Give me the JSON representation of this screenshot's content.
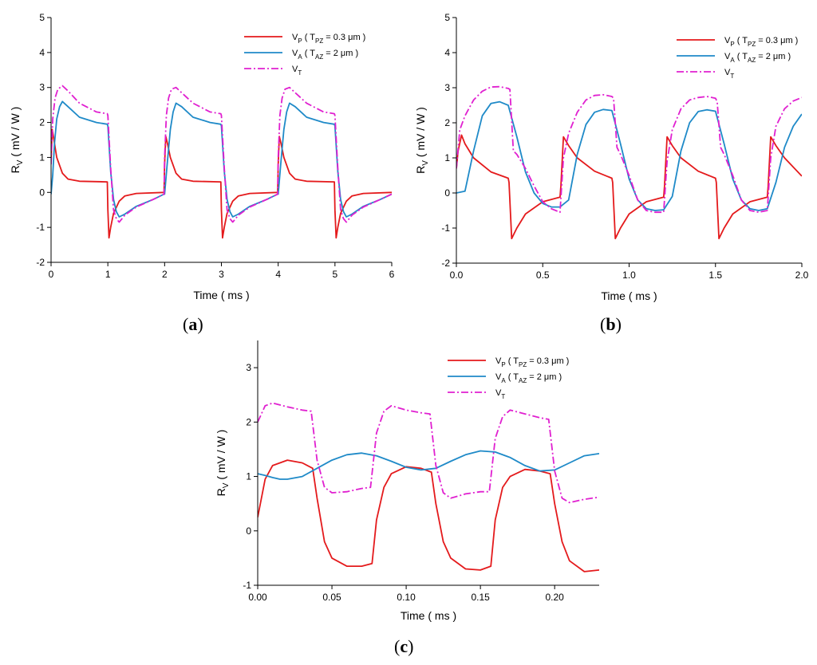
{
  "colors": {
    "vp": "#e41a1c",
    "va": "#1f8ac8",
    "vt": "#e020d0",
    "axis": "#000000"
  },
  "chart_data": [
    {
      "id": "a",
      "panel_label": "a",
      "type": "line",
      "xlabel": "Time ( ms )",
      "ylabel_main": "R",
      "ylabel_sub": "V",
      "ylabel_rest": " ( mV / W )",
      "xlim": [
        0,
        6
      ],
      "ylim": [
        -2,
        5
      ],
      "xticks": [
        0,
        1,
        2,
        3,
        4,
        5,
        6
      ],
      "xtick_labels": [
        "0",
        "1",
        "2",
        "3",
        "4",
        "5",
        "6"
      ],
      "yticks": [
        -2,
        -1,
        0,
        1,
        2,
        3,
        4,
        5
      ],
      "ytick_labels": [
        "-2",
        "-1",
        "0",
        "1",
        "2",
        "3",
        "4",
        "5"
      ],
      "legend": [
        {
          "main": "V",
          "sub": "P",
          "rest": " ( T",
          "sub2": "PZ",
          "rest2": " = 0.3 μm )"
        },
        {
          "main": "V",
          "sub": "A",
          "rest": " ( T",
          "sub2": "AZ",
          "rest2": " = 2 μm )"
        },
        {
          "main": "V",
          "sub": "T",
          "rest": "",
          "sub2": "",
          "rest2": ""
        }
      ],
      "series": [
        {
          "name": "VP",
          "x": [
            0,
            0.02,
            0.05,
            0.1,
            0.2,
            0.3,
            0.5,
            0.99,
            1.0,
            1.02,
            1.05,
            1.1,
            1.2,
            1.3,
            1.5,
            1.99,
            2.0,
            2.02,
            2.05,
            2.1,
            2.2,
            2.3,
            2.5,
            2.99,
            3.0,
            3.02,
            3.05,
            3.1,
            3.2,
            3.3,
            3.5,
            3.99,
            4.0,
            4.02,
            4.05,
            4.1,
            4.2,
            4.3,
            4.5,
            4.99,
            5.0,
            5.02,
            5.05,
            5.1,
            5.2,
            5.3,
            5.5,
            6.0
          ],
          "values": [
            0.9,
            1.8,
            1.5,
            1.0,
            0.55,
            0.38,
            0.32,
            0.3,
            -0.5,
            -1.3,
            -1.0,
            -0.6,
            -0.25,
            -0.1,
            -0.03,
            0.0,
            0.8,
            1.6,
            1.4,
            1.0,
            0.55,
            0.38,
            0.32,
            0.3,
            -0.5,
            -1.3,
            -1.0,
            -0.6,
            -0.25,
            -0.1,
            -0.03,
            0.0,
            0.8,
            1.6,
            1.4,
            1.0,
            0.55,
            0.38,
            0.32,
            0.3,
            -0.5,
            -1.3,
            -1.0,
            -0.6,
            -0.25,
            -0.1,
            -0.03,
            0.0
          ]
        },
        {
          "name": "VA",
          "x": [
            0,
            0.03,
            0.06,
            0.1,
            0.15,
            0.2,
            0.3,
            0.5,
            0.8,
            0.99,
            1.0,
            1.05,
            1.1,
            1.15,
            1.2,
            1.3,
            1.5,
            1.8,
            1.99,
            2.0,
            2.05,
            2.1,
            2.15,
            2.2,
            2.3,
            2.5,
            2.8,
            2.99,
            3.0,
            3.05,
            3.1,
            3.15,
            3.2,
            3.3,
            3.5,
            3.8,
            3.99,
            4.0,
            4.05,
            4.1,
            4.15,
            4.2,
            4.3,
            4.5,
            4.8,
            4.99,
            5.0,
            5.05,
            5.1,
            5.15,
            5.2,
            5.3,
            5.5,
            5.8,
            6.0
          ],
          "values": [
            -0.05,
            0.5,
            1.4,
            2.1,
            2.45,
            2.6,
            2.45,
            2.15,
            2.0,
            1.95,
            1.9,
            0.6,
            -0.2,
            -0.55,
            -0.7,
            -0.62,
            -0.4,
            -0.2,
            -0.05,
            -0.05,
            0.9,
            1.8,
            2.3,
            2.55,
            2.45,
            2.15,
            2.0,
            1.95,
            1.9,
            0.6,
            -0.2,
            -0.55,
            -0.7,
            -0.62,
            -0.4,
            -0.2,
            -0.05,
            -0.05,
            0.9,
            1.8,
            2.3,
            2.55,
            2.45,
            2.15,
            2.0,
            1.95,
            1.9,
            0.6,
            -0.2,
            -0.55,
            -0.7,
            -0.62,
            -0.4,
            -0.2,
            -0.05
          ]
        },
        {
          "name": "VT",
          "x": [
            0,
            0.03,
            0.07,
            0.12,
            0.2,
            0.3,
            0.5,
            0.8,
            0.99,
            1.0,
            1.05,
            1.1,
            1.15,
            1.2,
            1.3,
            1.5,
            1.8,
            1.99,
            2.0,
            2.03,
            2.07,
            2.12,
            2.2,
            2.3,
            2.5,
            2.8,
            2.99,
            3.0,
            3.05,
            3.1,
            3.15,
            3.2,
            3.3,
            3.5,
            3.8,
            3.99,
            4.0,
            4.03,
            4.07,
            4.12,
            4.2,
            4.3,
            4.5,
            4.8,
            4.99,
            5.0,
            5.05,
            5.1,
            5.15,
            5.2,
            5.3,
            5.5,
            5.8,
            6.0
          ],
          "values": [
            0.8,
            2.1,
            2.7,
            2.95,
            3.05,
            2.9,
            2.55,
            2.3,
            2.25,
            2.2,
            0.7,
            -0.5,
            -0.75,
            -0.85,
            -0.65,
            -0.42,
            -0.2,
            -0.05,
            1.0,
            2.2,
            2.7,
            2.95,
            3.0,
            2.85,
            2.55,
            2.3,
            2.25,
            2.2,
            0.7,
            -0.5,
            -0.75,
            -0.85,
            -0.65,
            -0.42,
            -0.2,
            -0.05,
            1.0,
            2.2,
            2.7,
            2.95,
            3.0,
            2.85,
            2.55,
            2.3,
            2.25,
            2.2,
            0.7,
            -0.5,
            -0.75,
            -0.85,
            -0.65,
            -0.42,
            -0.2,
            -0.05
          ]
        }
      ]
    },
    {
      "id": "b",
      "panel_label": "b",
      "type": "line",
      "xlabel": "Time ( ms )",
      "ylabel_main": "R",
      "ylabel_sub": "V",
      "ylabel_rest": " ( mV / W )",
      "xlim": [
        0,
        2
      ],
      "ylim": [
        -2,
        5
      ],
      "xticks": [
        0,
        0.5,
        1,
        1.5,
        2
      ],
      "xtick_labels": [
        "0.0",
        "0.5",
        "1.0",
        "1.5",
        "2.0"
      ],
      "yticks": [
        -2,
        -1,
        0,
        1,
        2,
        3,
        4,
        5
      ],
      "ytick_labels": [
        "-2",
        "-1",
        "0",
        "1",
        "2",
        "3",
        "4",
        "5"
      ],
      "legend": [
        {
          "main": "V",
          "sub": "P",
          "rest": " ( T",
          "sub2": "PZ",
          "rest2": " = 0.3 μm )"
        },
        {
          "main": "V",
          "sub": "A",
          "rest": " ( T",
          "sub2": "AZ",
          "rest2": " = 2 μm )"
        },
        {
          "main": "V",
          "sub": "T",
          "rest": "",
          "sub2": "",
          "rest2": ""
        }
      ],
      "series": [
        {
          "name": "VP",
          "x": [
            0,
            0.01,
            0.03,
            0.05,
            0.1,
            0.2,
            0.3,
            0.305,
            0.32,
            0.35,
            0.4,
            0.5,
            0.6,
            0.605,
            0.62,
            0.65,
            0.7,
            0.8,
            0.9,
            0.905,
            0.92,
            0.95,
            1.0,
            1.1,
            1.2,
            1.205,
            1.22,
            1.25,
            1.3,
            1.4,
            1.5,
            1.505,
            1.52,
            1.55,
            1.6,
            1.7,
            1.8,
            1.805,
            1.82,
            1.85,
            1.9,
            2.0
          ],
          "values": [
            0.7,
            1.2,
            1.65,
            1.4,
            1.0,
            0.6,
            0.42,
            0.3,
            -1.3,
            -1.0,
            -0.6,
            -0.25,
            -0.12,
            0.2,
            1.6,
            1.35,
            1.0,
            0.62,
            0.42,
            0.3,
            -1.3,
            -1.0,
            -0.6,
            -0.25,
            -0.12,
            0.2,
            1.6,
            1.35,
            1.0,
            0.62,
            0.42,
            0.3,
            -1.3,
            -1.0,
            -0.6,
            -0.25,
            -0.12,
            0.2,
            1.6,
            1.35,
            1.0,
            0.48
          ]
        },
        {
          "name": "VA",
          "x": [
            0,
            0.05,
            0.1,
            0.15,
            0.2,
            0.25,
            0.3,
            0.35,
            0.4,
            0.45,
            0.5,
            0.55,
            0.6,
            0.65,
            0.7,
            0.75,
            0.8,
            0.85,
            0.9,
            0.95,
            1.0,
            1.05,
            1.1,
            1.15,
            1.2,
            1.25,
            1.3,
            1.35,
            1.4,
            1.45,
            1.5,
            1.55,
            1.6,
            1.65,
            1.7,
            1.75,
            1.8,
            1.85,
            1.9,
            1.95,
            2.0
          ],
          "values": [
            0.0,
            0.05,
            1.2,
            2.2,
            2.55,
            2.6,
            2.5,
            1.6,
            0.6,
            0.0,
            -0.3,
            -0.4,
            -0.4,
            -0.2,
            1.1,
            1.95,
            2.3,
            2.38,
            2.35,
            1.4,
            0.4,
            -0.2,
            -0.45,
            -0.5,
            -0.48,
            -0.1,
            1.2,
            2.0,
            2.32,
            2.37,
            2.33,
            1.4,
            0.4,
            -0.2,
            -0.45,
            -0.5,
            -0.45,
            0.3,
            1.3,
            1.9,
            2.25
          ]
        },
        {
          "name": "VT",
          "x": [
            0,
            0.02,
            0.05,
            0.1,
            0.15,
            0.2,
            0.25,
            0.3,
            0.31,
            0.33,
            0.35,
            0.4,
            0.45,
            0.5,
            0.55,
            0.6,
            0.62,
            0.65,
            0.7,
            0.75,
            0.8,
            0.85,
            0.9,
            0.91,
            0.93,
            0.95,
            1.0,
            1.05,
            1.1,
            1.15,
            1.2,
            1.22,
            1.25,
            1.3,
            1.35,
            1.4,
            1.45,
            1.5,
            1.51,
            1.53,
            1.55,
            1.6,
            1.65,
            1.7,
            1.75,
            1.8,
            1.82,
            1.85,
            1.9,
            1.95,
            2.0
          ],
          "values": [
            0.7,
            1.8,
            2.2,
            2.65,
            2.9,
            3.02,
            3.03,
            2.98,
            2.95,
            1.2,
            1.1,
            0.7,
            0.2,
            -0.25,
            -0.45,
            -0.55,
            1.0,
            1.7,
            2.3,
            2.65,
            2.78,
            2.8,
            2.75,
            2.7,
            1.3,
            1.1,
            0.5,
            -0.2,
            -0.5,
            -0.55,
            -0.55,
            0.9,
            1.8,
            2.4,
            2.65,
            2.72,
            2.75,
            2.7,
            2.6,
            1.3,
            1.1,
            0.5,
            -0.2,
            -0.5,
            -0.55,
            -0.5,
            1.0,
            1.9,
            2.4,
            2.62,
            2.72
          ]
        }
      ]
    },
    {
      "id": "c",
      "panel_label": "c",
      "type": "line",
      "xlabel": "Time ( ms )",
      "ylabel_main": "R",
      "ylabel_sub": "V",
      "ylabel_rest": " ( mV / W )",
      "xlim": [
        0,
        0.23
      ],
      "ylim": [
        -1,
        3.5
      ],
      "xticks": [
        0,
        0.05,
        0.1,
        0.15,
        0.2
      ],
      "xtick_labels": [
        "0.00",
        "0.05",
        "0.10",
        "0.15",
        "0.20"
      ],
      "yticks": [
        -1,
        0,
        1,
        2,
        3
      ],
      "ytick_labels": [
        "-1",
        "0",
        "1",
        "2",
        "3"
      ],
      "legend": [
        {
          "main": "V",
          "sub": "P",
          "rest": " ( T",
          "sub2": "PZ",
          "rest2": " = 0.3 μm )"
        },
        {
          "main": "V",
          "sub": "A",
          "rest": " ( T",
          "sub2": "AZ",
          "rest2": " = 2 μm )"
        },
        {
          "main": "V",
          "sub": "T",
          "rest": "",
          "sub2": "",
          "rest2": ""
        }
      ],
      "series": [
        {
          "name": "VP",
          "x": [
            0,
            0.005,
            0.01,
            0.02,
            0.03,
            0.037,
            0.04,
            0.045,
            0.05,
            0.06,
            0.07,
            0.077,
            0.08,
            0.085,
            0.09,
            0.1,
            0.11,
            0.117,
            0.12,
            0.125,
            0.13,
            0.14,
            0.15,
            0.157,
            0.16,
            0.165,
            0.17,
            0.18,
            0.19,
            0.197,
            0.2,
            0.205,
            0.21,
            0.22,
            0.23
          ],
          "values": [
            0.25,
            0.95,
            1.2,
            1.3,
            1.25,
            1.15,
            0.6,
            -0.2,
            -0.5,
            -0.65,
            -0.65,
            -0.6,
            0.2,
            0.8,
            1.05,
            1.18,
            1.15,
            1.08,
            0.5,
            -0.2,
            -0.5,
            -0.7,
            -0.72,
            -0.65,
            0.2,
            0.8,
            1.0,
            1.13,
            1.1,
            1.05,
            0.5,
            -0.2,
            -0.55,
            -0.75,
            -0.72
          ]
        },
        {
          "name": "VA",
          "x": [
            0,
            0.005,
            0.01,
            0.015,
            0.02,
            0.03,
            0.04,
            0.05,
            0.06,
            0.07,
            0.08,
            0.09,
            0.1,
            0.11,
            0.12,
            0.13,
            0.14,
            0.15,
            0.16,
            0.17,
            0.18,
            0.19,
            0.2,
            0.21,
            0.22,
            0.23
          ],
          "values": [
            1.05,
            1.02,
            0.98,
            0.95,
            0.95,
            1.0,
            1.15,
            1.3,
            1.4,
            1.43,
            1.38,
            1.28,
            1.17,
            1.12,
            1.15,
            1.28,
            1.4,
            1.47,
            1.45,
            1.35,
            1.2,
            1.1,
            1.12,
            1.25,
            1.38,
            1.42
          ]
        },
        {
          "name": "VT",
          "x": [
            0,
            0.005,
            0.01,
            0.02,
            0.03,
            0.036,
            0.04,
            0.045,
            0.05,
            0.06,
            0.07,
            0.076,
            0.08,
            0.085,
            0.09,
            0.1,
            0.11,
            0.116,
            0.12,
            0.125,
            0.13,
            0.14,
            0.15,
            0.156,
            0.16,
            0.165,
            0.17,
            0.18,
            0.19,
            0.196,
            0.2,
            0.205,
            0.21,
            0.22,
            0.23
          ],
          "values": [
            2.0,
            2.3,
            2.35,
            2.28,
            2.22,
            2.2,
            1.3,
            0.8,
            0.7,
            0.72,
            0.78,
            0.8,
            1.8,
            2.2,
            2.3,
            2.22,
            2.17,
            2.15,
            1.2,
            0.7,
            0.6,
            0.68,
            0.72,
            0.72,
            1.7,
            2.1,
            2.22,
            2.15,
            2.08,
            2.05,
            1.1,
            0.6,
            0.52,
            0.58,
            0.62
          ]
        }
      ]
    }
  ]
}
